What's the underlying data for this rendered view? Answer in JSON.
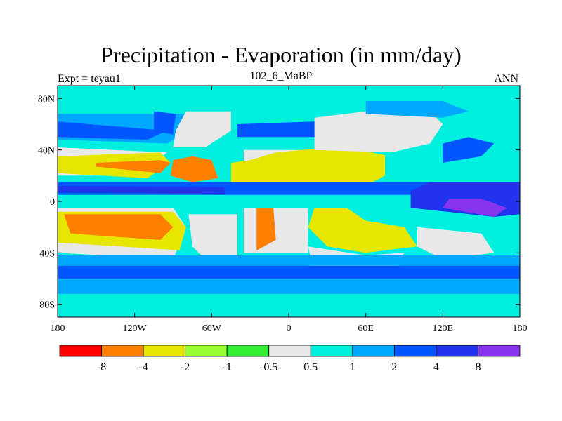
{
  "chart_data": {
    "type": "heatmap",
    "title": "Precipitation - Evaporation (in mm/day)",
    "subtitle": "102_6_MaBP",
    "left_string": "Expt = teyau1",
    "right_string": "ANN",
    "x_ticks": [
      "180",
      "120W",
      "60W",
      "0",
      "60E",
      "120E",
      "180"
    ],
    "x_tick_values": [
      -180,
      -120,
      -60,
      0,
      60,
      120,
      180
    ],
    "y_ticks": [
      "80N",
      "40N",
      "0",
      "40S",
      "80S"
    ],
    "y_tick_values": [
      80,
      40,
      0,
      -40,
      -80
    ],
    "xlim": [
      -180,
      180
    ],
    "ylim": [
      -90,
      90
    ],
    "colorbar": {
      "levels": [
        "-8",
        "-4",
        "-2",
        "-1",
        "-0.5",
        "0.5",
        "1",
        "2",
        "4",
        "8"
      ],
      "colors": [
        "#ff0000",
        "#ff8000",
        "#e6e600",
        "#99ff33",
        "#33ee33",
        "#e8e8e8",
        "#00f0e0",
        "#00a8ff",
        "#0055ff",
        "#2233ee",
        "#8833ee"
      ]
    },
    "background_color": "#00f0e0",
    "regions": [
      {
        "name": "north-atlantic-dry",
        "class": "#e8e8e8",
        "pts": [
          [
            -35,
            20
          ],
          [
            10,
            20
          ],
          [
            10,
            40
          ],
          [
            -35,
            40
          ]
        ]
      },
      {
        "name": "north-pacific-mid-wet",
        "class": "#00a8ff",
        "pts": [
          [
            -180,
            48
          ],
          [
            -95,
            45
          ],
          [
            -75,
            55
          ],
          [
            -80,
            68
          ],
          [
            -180,
            68
          ]
        ]
      },
      {
        "name": "north-pacific-storm",
        "class": "#0055ff",
        "pts": [
          [
            -180,
            50
          ],
          [
            -110,
            48
          ],
          [
            -95,
            55
          ],
          [
            -180,
            62
          ]
        ]
      },
      {
        "name": "north-pacific-dry",
        "class": "#e8e8e8",
        "pts": [
          [
            -180,
            20
          ],
          [
            -115,
            20
          ],
          [
            -95,
            38
          ],
          [
            -180,
            42
          ]
        ]
      },
      {
        "name": "north-pacific-yellow",
        "class": "#e6e600",
        "pts": [
          [
            -180,
            22
          ],
          [
            -110,
            18
          ],
          [
            -92,
            30
          ],
          [
            -100,
            38
          ],
          [
            -180,
            35
          ]
        ]
      },
      {
        "name": "north-pacific-orange",
        "class": "#ff8000",
        "pts": [
          [
            -150,
            27
          ],
          [
            -100,
            22
          ],
          [
            -92,
            30
          ],
          [
            -100,
            32
          ],
          [
            -150,
            30
          ]
        ]
      },
      {
        "name": "north-america-west-wet",
        "class": "#0055ff",
        "pts": [
          [
            -105,
            55
          ],
          [
            -90,
            52
          ],
          [
            -88,
            68
          ],
          [
            -105,
            70
          ]
        ]
      },
      {
        "name": "north-america-interior",
        "class": "#e8e8e8",
        "pts": [
          [
            -90,
            42
          ],
          [
            -65,
            42
          ],
          [
            -45,
            55
          ],
          [
            -45,
            70
          ],
          [
            -80,
            70
          ],
          [
            -88,
            55
          ]
        ]
      },
      {
        "name": "north-america-orange",
        "class": "#ff8000",
        "pts": [
          [
            -92,
            20
          ],
          [
            -75,
            15
          ],
          [
            -55,
            18
          ],
          [
            -60,
            32
          ],
          [
            -75,
            35
          ],
          [
            -90,
            32
          ]
        ]
      },
      {
        "name": "eurasia-orange",
        "class": "#ff8000",
        "pts": [
          [
            -40,
            15
          ],
          [
            -20,
            15
          ],
          [
            10,
            20
          ],
          [
            25,
            22
          ],
          [
            50,
            20
          ],
          [
            70,
            22
          ],
          [
            75,
            35
          ],
          [
            55,
            36
          ],
          [
            30,
            38
          ],
          [
            0,
            35
          ],
          [
            -20,
            30
          ],
          [
            -40,
            28
          ]
        ]
      },
      {
        "name": "north-africa-yellow",
        "class": "#e6e600",
        "pts": [
          [
            -45,
            10
          ],
          [
            -20,
            8
          ],
          [
            0,
            10
          ],
          [
            20,
            8
          ],
          [
            40,
            10
          ],
          [
            60,
            12
          ],
          [
            75,
            20
          ],
          [
            75,
            36
          ],
          [
            55,
            40
          ],
          [
            35,
            42
          ],
          [
            10,
            40
          ],
          [
            -10,
            38
          ],
          [
            -30,
            32
          ],
          [
            -45,
            30
          ]
        ]
      },
      {
        "name": "eurasia-north-dry",
        "class": "#e8e8e8",
        "pts": [
          [
            20,
            40
          ],
          [
            80,
            38
          ],
          [
            110,
            45
          ],
          [
            120,
            60
          ],
          [
            110,
            70
          ],
          [
            60,
            70
          ],
          [
            20,
            65
          ]
        ]
      },
      {
        "name": "siberia-mid",
        "class": "#00a8ff",
        "pts": [
          [
            60,
            68
          ],
          [
            120,
            65
          ],
          [
            140,
            70
          ],
          [
            120,
            78
          ],
          [
            60,
            78
          ]
        ]
      },
      {
        "name": "east-asia-wet",
        "class": "#0055ff",
        "pts": [
          [
            120,
            30
          ],
          [
            150,
            35
          ],
          [
            160,
            45
          ],
          [
            140,
            50
          ],
          [
            120,
            45
          ]
        ]
      },
      {
        "name": "tropical-itcz-wet",
        "class": "#0055ff",
        "pts": [
          [
            -180,
            5
          ],
          [
            180,
            5
          ],
          [
            180,
            15
          ],
          [
            -180,
            15
          ]
        ]
      },
      {
        "name": "tropical-itcz-core",
        "class": "#2233ee",
        "pts": [
          [
            -180,
            7
          ],
          [
            -50,
            6
          ],
          [
            -50,
            11
          ],
          [
            -180,
            12
          ]
        ]
      },
      {
        "name": "maritime-continent",
        "class": "#2233ee",
        "pts": [
          [
            95,
            -5
          ],
          [
            160,
            -12
          ],
          [
            180,
            -10
          ],
          [
            180,
            15
          ],
          [
            110,
            15
          ],
          [
            95,
            8
          ]
        ]
      },
      {
        "name": "western-pacific-core",
        "class": "#8833ee",
        "pts": [
          [
            120,
            -5
          ],
          [
            160,
            -12
          ],
          [
            170,
            -5
          ],
          [
            150,
            2
          ],
          [
            125,
            2
          ]
        ]
      },
      {
        "name": "equatorial-gap",
        "class": "#00f0e0",
        "pts": [
          [
            -180,
            0
          ],
          [
            -40,
            0
          ],
          [
            -40,
            4
          ],
          [
            -180,
            4
          ]
        ]
      },
      {
        "name": "south-pacific-dry",
        "class": "#e8e8e8",
        "pts": [
          [
            -180,
            -5
          ],
          [
            -90,
            -5
          ],
          [
            -80,
            -20
          ],
          [
            -90,
            -45
          ],
          [
            -180,
            -40
          ]
        ]
      },
      {
        "name": "south-pacific-yellow",
        "class": "#e6e600",
        "pts": [
          [
            -180,
            -8
          ],
          [
            -90,
            -8
          ],
          [
            -80,
            -20
          ],
          [
            -85,
            -38
          ],
          [
            -180,
            -32
          ]
        ]
      },
      {
        "name": "south-pacific-orange",
        "class": "#ff8000",
        "pts": [
          [
            -175,
            -10
          ],
          [
            -100,
            -10
          ],
          [
            -90,
            -20
          ],
          [
            -100,
            -30
          ],
          [
            -170,
            -25
          ]
        ]
      },
      {
        "name": "south-america-dry",
        "class": "#e8e8e8",
        "pts": [
          [
            -78,
            -10
          ],
          [
            -40,
            -10
          ],
          [
            -40,
            -45
          ],
          [
            -60,
            -50
          ],
          [
            -75,
            -35
          ]
        ]
      },
      {
        "name": "south-atlantic-dry",
        "class": "#e8e8e8",
        "pts": [
          [
            -35,
            -5
          ],
          [
            15,
            -5
          ],
          [
            15,
            -40
          ],
          [
            -35,
            -40
          ]
        ]
      },
      {
        "name": "south-atlantic-orange",
        "class": "#ff8000",
        "pts": [
          [
            -25,
            -5
          ],
          [
            -12,
            -5
          ],
          [
            -10,
            -30
          ],
          [
            -25,
            -38
          ]
        ]
      },
      {
        "name": "africa-yellow",
        "class": "#e6e600",
        "pts": [
          [
            20,
            -5
          ],
          [
            45,
            -5
          ],
          [
            60,
            -15
          ],
          [
            90,
            -20
          ],
          [
            100,
            -35
          ],
          [
            60,
            -40
          ],
          [
            30,
            -35
          ],
          [
            15,
            -20
          ]
        ]
      },
      {
        "name": "indian-ocean-dry",
        "class": "#e8e8e8",
        "pts": [
          [
            15,
            -35
          ],
          [
            60,
            -42
          ],
          [
            90,
            -40
          ],
          [
            80,
            -55
          ],
          [
            20,
            -55
          ]
        ]
      },
      {
        "name": "australia-dry",
        "class": "#e8e8e8",
        "pts": [
          [
            100,
            -20
          ],
          [
            150,
            -25
          ],
          [
            160,
            -40
          ],
          [
            120,
            -45
          ],
          [
            100,
            -35
          ]
        ]
      },
      {
        "name": "southern-ocean-wet",
        "class": "#0055ff",
        "pts": [
          [
            -180,
            -50
          ],
          [
            180,
            -50
          ],
          [
            180,
            -60
          ],
          [
            -180,
            -60
          ]
        ]
      },
      {
        "name": "southern-ocean-mid",
        "class": "#00a8ff",
        "pts": [
          [
            -180,
            -42
          ],
          [
            180,
            -42
          ],
          [
            180,
            -50
          ],
          [
            -180,
            -50
          ]
        ]
      },
      {
        "name": "antarctic-mid",
        "class": "#00a8ff",
        "pts": [
          [
            -180,
            -60
          ],
          [
            180,
            -60
          ],
          [
            180,
            -72
          ],
          [
            -180,
            -72
          ]
        ]
      },
      {
        "name": "north-atlantic-wet",
        "class": "#0055ff",
        "pts": [
          [
            -40,
            50
          ],
          [
            20,
            50
          ],
          [
            20,
            62
          ],
          [
            -40,
            60
          ]
        ]
      }
    ]
  }
}
